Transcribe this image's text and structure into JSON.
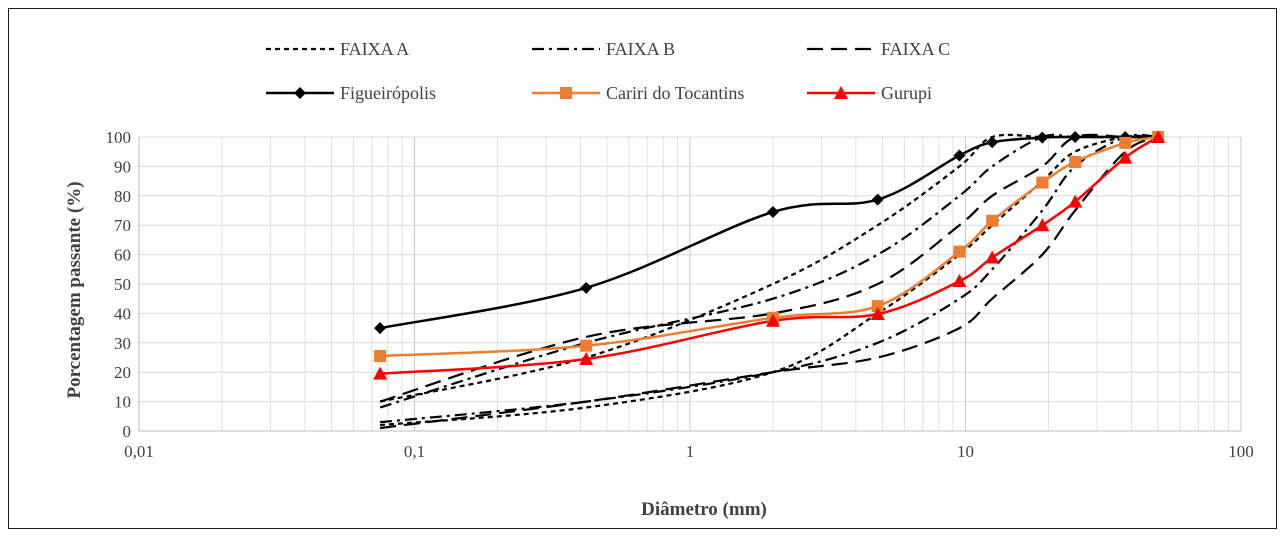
{
  "chart_data": {
    "type": "line",
    "title": "",
    "xlabel": "Diâmetro (mm)",
    "ylabel": "Porcentagem passante (%)",
    "x_scale": "log",
    "xlim": [
      0.01,
      100
    ],
    "ylim": [
      0,
      100
    ],
    "x_ticks": [
      {
        "value": 0.01,
        "label": "0,01"
      },
      {
        "value": 0.1,
        "label": "0,1"
      },
      {
        "value": 1,
        "label": "1"
      },
      {
        "value": 10,
        "label": "10"
      },
      {
        "value": 100,
        "label": "100"
      }
    ],
    "y_ticks": [
      {
        "value": 0,
        "label": "0"
      },
      {
        "value": 10,
        "label": "10"
      },
      {
        "value": 20,
        "label": "20"
      },
      {
        "value": 30,
        "label": "30"
      },
      {
        "value": 40,
        "label": "40"
      },
      {
        "value": 50,
        "label": "50"
      },
      {
        "value": 60,
        "label": "60"
      },
      {
        "value": 70,
        "label": "70"
      },
      {
        "value": 80,
        "label": "80"
      },
      {
        "value": 90,
        "label": "90"
      },
      {
        "value": 100,
        "label": "100"
      }
    ],
    "grid": true,
    "legend_position": "top",
    "series": [
      {
        "name": "FAIXA A",
        "style": "dashed-short",
        "color": "#000000",
        "marker": "none",
        "bound": "lower",
        "x": [
          0.075,
          0.42,
          2.0,
          4.8,
          9.5,
          12.5,
          19.0,
          25.0,
          38.0,
          50.0
        ],
        "y": [
          2,
          8,
          20,
          40,
          60,
          70,
          85,
          95,
          100,
          100
        ]
      },
      {
        "name": "FAIXA A",
        "style": "dashed-short",
        "color": "#000000",
        "marker": "none",
        "bound": "upper",
        "x": [
          0.075,
          0.42,
          2.0,
          4.8,
          9.5,
          12.5,
          19.0,
          25.0,
          38.0,
          50.0
        ],
        "y": [
          10,
          25,
          50,
          70,
          90,
          100,
          100,
          100,
          100,
          100
        ]
      },
      {
        "name": "FAIXA B",
        "style": "dash-dot",
        "color": "#000000",
        "marker": "none",
        "bound": "lower",
        "x": [
          0.075,
          0.42,
          2.0,
          4.8,
          9.5,
          12.5,
          19.0,
          25.0,
          38.0,
          50.0
        ],
        "y": [
          3,
          10,
          20,
          30,
          45,
          55,
          75,
          90,
          100,
          100
        ]
      },
      {
        "name": "FAIXA B",
        "style": "dash-dot",
        "color": "#000000",
        "marker": "none",
        "bound": "upper",
        "x": [
          0.075,
          0.42,
          2.0,
          4.8,
          9.5,
          12.5,
          19.0,
          25.0,
          38.0,
          50.0
        ],
        "y": [
          8,
          30,
          45,
          60,
          80,
          90,
          100,
          100,
          100,
          100
        ]
      },
      {
        "name": "FAIXA C",
        "style": "dashed-long",
        "color": "#000000",
        "marker": "none",
        "bound": "lower",
        "x": [
          0.075,
          0.42,
          2.0,
          4.8,
          9.5,
          12.5,
          19.0,
          25.0,
          38.0,
          50.0
        ],
        "y": [
          1,
          10,
          20,
          25,
          35,
          45,
          60,
          75,
          95,
          100
        ]
      },
      {
        "name": "FAIXA C",
        "style": "dashed-long",
        "color": "#000000",
        "marker": "none",
        "bound": "upper",
        "x": [
          0.075,
          0.42,
          2.0,
          4.8,
          9.5,
          12.5,
          19.0,
          25.0,
          38.0,
          50.0
        ],
        "y": [
          10,
          32,
          40,
          50,
          70,
          80,
          90,
          100,
          100,
          100
        ]
      },
      {
        "name": "Figueirópolis",
        "style": "solid",
        "color": "#000000",
        "marker": "diamond",
        "x": [
          0.075,
          0.42,
          2.0,
          4.8,
          9.5,
          12.5,
          19.0,
          25.0,
          38.0,
          50.0
        ],
        "y": [
          35,
          48.7,
          74.5,
          78.7,
          93.7,
          98.2,
          99.8,
          100,
          100,
          100
        ]
      },
      {
        "name": "Cariri do Tocantins",
        "style": "solid",
        "color": "#ED7D31",
        "marker": "square",
        "x": [
          0.075,
          0.42,
          2.0,
          4.8,
          9.5,
          12.5,
          19.0,
          25.0,
          38.0,
          50.0
        ],
        "y": [
          25.5,
          29,
          38.5,
          42.5,
          61,
          71.5,
          84.5,
          91.5,
          98,
          100
        ]
      },
      {
        "name": "Gurupi",
        "style": "solid",
        "color": "#FF0000",
        "marker": "triangle",
        "x": [
          0.075,
          0.42,
          2.0,
          4.8,
          9.5,
          12.5,
          19.0,
          25.0,
          38.0,
          50.0
        ],
        "y": [
          19.5,
          24.5,
          37.5,
          39.8,
          51,
          59,
          70,
          78,
          93,
          100
        ]
      }
    ],
    "legend": [
      {
        "label": "FAIXA A",
        "style": "dashed-short",
        "color": "#000000",
        "marker": "none"
      },
      {
        "label": "FAIXA B",
        "style": "dash-dot",
        "color": "#000000",
        "marker": "none"
      },
      {
        "label": "FAIXA C",
        "style": "dashed-long",
        "color": "#000000",
        "marker": "none"
      },
      {
        "label": "Figueirópolis",
        "style": "solid",
        "color": "#000000",
        "marker": "diamond"
      },
      {
        "label": "Cariri do Tocantins",
        "style": "solid",
        "color": "#ED7D31",
        "marker": "square"
      },
      {
        "label": "Gurupi",
        "style": "solid",
        "color": "#FF0000",
        "marker": "triangle"
      }
    ]
  }
}
